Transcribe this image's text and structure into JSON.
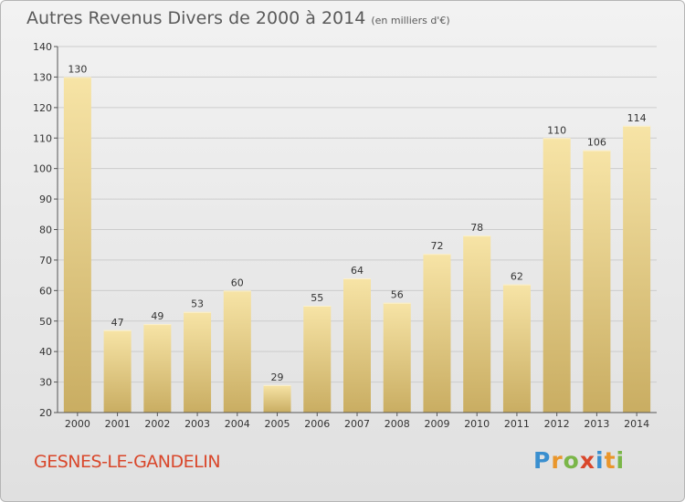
{
  "header": {
    "title": "Autres Revenus Divers de 2000 à 2014",
    "subtitle": "(en milliers d'€)"
  },
  "footer": {
    "commune": "GESNES-LE-GANDELIN",
    "brand": "Proxiti"
  },
  "colors": {
    "bar_light": "#f7e4a6",
    "bar_dark": "#c9ad62",
    "grid": "#cccccc",
    "commune": "#d9472b"
  },
  "chart_data": {
    "type": "bar",
    "title": "Autres Revenus Divers de 2000 à 2014",
    "subtitle": "(en milliers d'€)",
    "xlabel": "",
    "ylabel": "",
    "categories": [
      "2000",
      "2001",
      "2002",
      "2003",
      "2004",
      "2005",
      "2006",
      "2007",
      "2008",
      "2009",
      "2010",
      "2011",
      "2012",
      "2013",
      "2014"
    ],
    "values": [
      130,
      47,
      49,
      53,
      60,
      29,
      55,
      64,
      56,
      72,
      78,
      62,
      110,
      106,
      114
    ],
    "ylim": [
      20,
      140
    ],
    "yticks": [
      20,
      30,
      40,
      50,
      60,
      70,
      80,
      90,
      100,
      110,
      120,
      130,
      140
    ],
    "grid": true
  }
}
